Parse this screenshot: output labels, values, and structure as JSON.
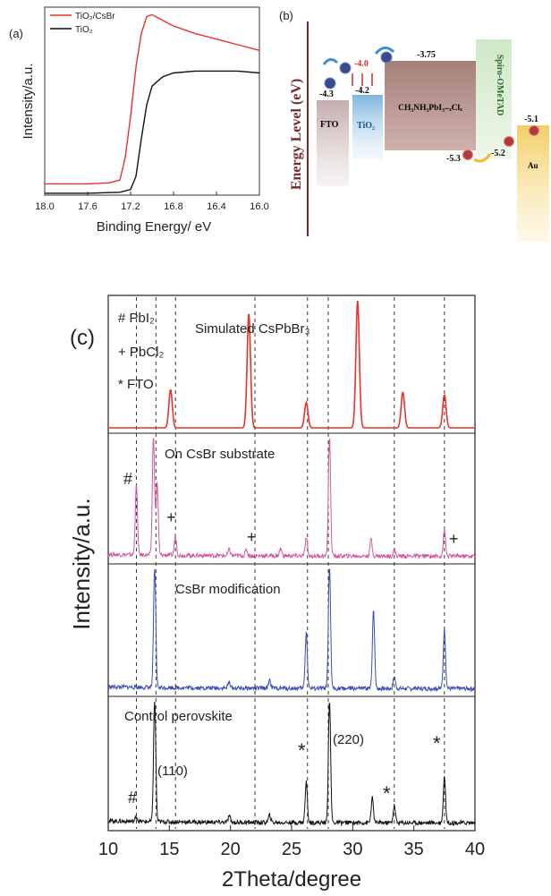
{
  "panel_a": {
    "label": "(a)",
    "xlabel": "Binding Energy/ eV",
    "ylabel": "Intensity/a.u.",
    "legend": [
      {
        "name": "TiO₂/CsBr",
        "color": "#e8322b"
      },
      {
        "name": "TiO₂",
        "color": "#111111"
      }
    ]
  },
  "panel_b": {
    "label": "(b)",
    "ylabel": "Energy Level (eV)",
    "levels": {
      "fto": "-4.3",
      "tio2_cb": "-4.2",
      "interface": "-4.0",
      "perov_cb": "-3.75",
      "perov_vb": "-5.3",
      "spiro_homo": "-5.2",
      "au": "-5.1"
    },
    "layers": {
      "fto": "FTO",
      "tio2": "TiO₂",
      "perovskite": "CH₃NH₃PbI₃₋ₓClₓ",
      "spiro": "Spiro-OMeTAD",
      "au": "Au"
    }
  },
  "panel_c": {
    "label": "(c)",
    "xlabel": "2Theta/degree",
    "ylabel": "Intensity/a.u.",
    "legend": [
      "# PbI₂",
      "+ PbCl₂",
      "*  FTO"
    ],
    "panels": [
      {
        "title": "Simulated CsPbBr₃",
        "color": "#e8322b"
      },
      {
        "title": "On CsBr substrate",
        "color": "#d4589f"
      },
      {
        "title": "CsBr modification",
        "color": "#3a4fb0"
      },
      {
        "title": "Control perovskite",
        "color": "#111111"
      }
    ],
    "annotations": {
      "p110": "(110)",
      "p220": "(220)",
      "hash": "#",
      "plus": "+",
      "star": "*"
    }
  },
  "chart_data": [
    {
      "type": "line",
      "title": "",
      "xlabel": "Binding Energy/ eV",
      "ylabel": "Intensity/a.u.",
      "xlim": [
        18.0,
        16.0
      ],
      "x_reversed": true,
      "xticks": [
        18.0,
        17.6,
        17.2,
        16.8,
        16.4,
        16.0
      ],
      "series": [
        {
          "name": "TiO₂/CsBr",
          "color": "#e8322b",
          "x": [
            18.0,
            17.6,
            17.4,
            17.3,
            17.25,
            17.2,
            17.15,
            17.1,
            17.05,
            17.0,
            16.9,
            16.8,
            16.6,
            16.4,
            16.2,
            16.0
          ],
          "y": [
            0.06,
            0.06,
            0.065,
            0.08,
            0.2,
            0.42,
            0.68,
            0.86,
            0.95,
            0.96,
            0.93,
            0.9,
            0.86,
            0.83,
            0.8,
            0.77
          ]
        },
        {
          "name": "TiO₂",
          "color": "#111111",
          "x": [
            18.0,
            17.6,
            17.3,
            17.2,
            17.15,
            17.1,
            17.05,
            17.0,
            16.9,
            16.8,
            16.6,
            16.4,
            16.2,
            16.0
          ],
          "y": [
            0.01,
            0.01,
            0.015,
            0.03,
            0.1,
            0.3,
            0.48,
            0.58,
            0.63,
            0.65,
            0.66,
            0.66,
            0.66,
            0.65
          ]
        }
      ]
    },
    {
      "type": "line",
      "title": "",
      "xlabel": "2Theta/degree",
      "ylabel": "Intensity/a.u.",
      "xlim": [
        10,
        40
      ],
      "xticks": [
        10,
        15,
        20,
        25,
        30,
        35,
        40
      ],
      "reference_lines": [
        12.3,
        13.9,
        15.5,
        22.0,
        26.3,
        28.0,
        33.4,
        37.5
      ],
      "series": [
        {
          "name": "Simulated CsPbBr₃",
          "color": "#e8322b",
          "peaks": [
            [
              15.1,
              0.3
            ],
            [
              21.5,
              0.9
            ],
            [
              26.2,
              0.2
            ],
            [
              30.4,
              1.0
            ],
            [
              34.1,
              0.28
            ],
            [
              37.5,
              0.26
            ]
          ]
        },
        {
          "name": "On CsBr substrate",
          "color": "#d4589f",
          "peaks": [
            [
              12.3,
              0.58
            ],
            [
              13.7,
              1.0
            ],
            [
              14.0,
              0.6
            ],
            [
              15.5,
              0.16
            ],
            [
              19.9,
              0.05
            ],
            [
              21.3,
              0.05
            ],
            [
              24.1,
              0.06
            ],
            [
              26.2,
              0.15
            ],
            [
              28.1,
              1.0
            ],
            [
              31.5,
              0.14
            ],
            [
              33.4,
              0.05
            ],
            [
              37.5,
              0.22
            ]
          ]
        },
        {
          "name": "CsBr modification",
          "color": "#3a4fb0",
          "peaks": [
            [
              13.8,
              1.0
            ],
            [
              19.9,
              0.05
            ],
            [
              23.2,
              0.07
            ],
            [
              26.2,
              0.46
            ],
            [
              28.1,
              1.0
            ],
            [
              31.7,
              0.65
            ],
            [
              33.4,
              0.1
            ],
            [
              37.5,
              0.49
            ]
          ]
        },
        {
          "name": "Control perovskite",
          "color": "#111111",
          "peaks": [
            [
              12.3,
              0.04
            ],
            [
              13.8,
              1.0
            ],
            [
              19.9,
              0.05
            ],
            [
              23.2,
              0.06
            ],
            [
              26.2,
              0.33
            ],
            [
              28.1,
              1.0
            ],
            [
              31.6,
              0.2
            ],
            [
              33.4,
              0.14
            ],
            [
              37.5,
              0.38
            ]
          ]
        }
      ]
    }
  ]
}
